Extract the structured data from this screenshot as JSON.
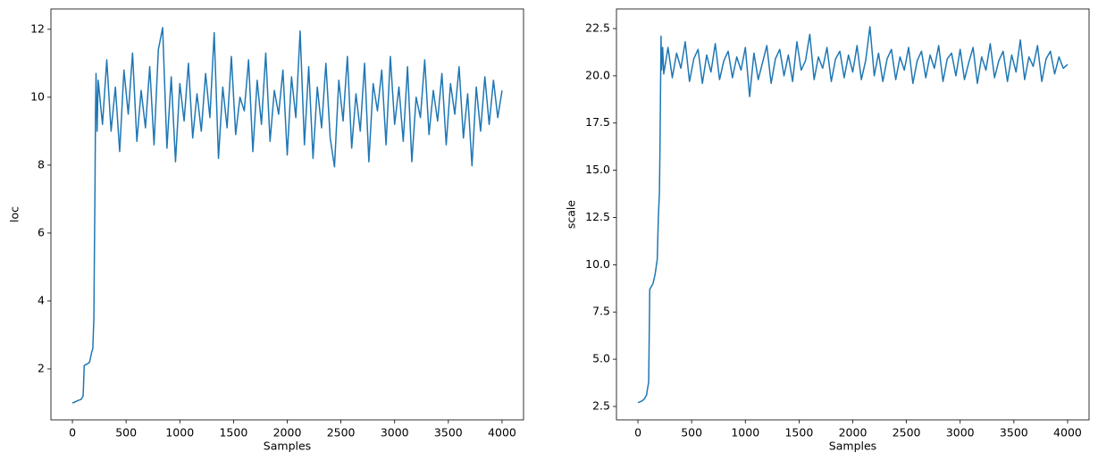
{
  "chart_data": [
    {
      "type": "line",
      "xlabel": "Samples",
      "ylabel": "loc",
      "color": "#1f77b4",
      "xlim": [
        -200,
        4200
      ],
      "ylim": [
        0.5,
        12.6
      ],
      "xticks": [
        0,
        500,
        1000,
        1500,
        2000,
        2500,
        3000,
        3500,
        4000
      ],
      "yticks": [
        2,
        4,
        6,
        8,
        10,
        12
      ],
      "x": [
        0,
        20,
        40,
        60,
        80,
        100,
        110,
        120,
        140,
        160,
        180,
        190,
        200,
        205,
        210,
        215,
        220,
        230,
        240,
        280,
        320,
        360,
        400,
        440,
        480,
        520,
        560,
        600,
        640,
        680,
        720,
        760,
        800,
        840,
        880,
        920,
        960,
        1000,
        1040,
        1080,
        1120,
        1160,
        1200,
        1240,
        1280,
        1320,
        1360,
        1400,
        1440,
        1480,
        1520,
        1560,
        1600,
        1640,
        1680,
        1720,
        1760,
        1800,
        1840,
        1880,
        1920,
        1960,
        2000,
        2040,
        2080,
        2120,
        2160,
        2200,
        2240,
        2280,
        2320,
        2360,
        2400,
        2440,
        2480,
        2520,
        2560,
        2600,
        2640,
        2680,
        2720,
        2760,
        2800,
        2840,
        2880,
        2920,
        2960,
        3000,
        3040,
        3080,
        3120,
        3160,
        3200,
        3240,
        3280,
        3320,
        3360,
        3400,
        3440,
        3480,
        3520,
        3560,
        3600,
        3640,
        3680,
        3720,
        3760,
        3800,
        3840,
        3880,
        3920,
        3960,
        4000
      ],
      "values": [
        1.0,
        1.02,
        1.05,
        1.08,
        1.1,
        1.2,
        2.1,
        2.12,
        2.15,
        2.2,
        2.5,
        2.6,
        3.5,
        5.5,
        7.2,
        9.5,
        10.7,
        9.0,
        10.5,
        9.2,
        11.1,
        9.0,
        10.3,
        8.4,
        10.8,
        9.5,
        11.3,
        8.7,
        10.2,
        9.1,
        10.9,
        8.6,
        11.4,
        12.05,
        8.5,
        10.6,
        8.1,
        10.4,
        9.3,
        11.0,
        8.8,
        10.1,
        9.0,
        10.7,
        9.4,
        11.9,
        8.2,
        10.3,
        9.1,
        11.2,
        8.9,
        10.0,
        9.6,
        11.1,
        8.4,
        10.5,
        9.2,
        11.3,
        8.7,
        10.2,
        9.5,
        10.8,
        8.3,
        10.6,
        9.4,
        11.95,
        8.6,
        10.9,
        8.2,
        10.3,
        9.1,
        11.0,
        8.8,
        7.95,
        10.5,
        9.3,
        11.2,
        8.5,
        10.1,
        9.0,
        11.0,
        8.1,
        10.4,
        9.6,
        10.8,
        8.6,
        11.2,
        9.2,
        10.3,
        8.7,
        10.9,
        8.1,
        10.0,
        9.4,
        11.1,
        8.9,
        10.2,
        9.3,
        10.7,
        8.6,
        10.4,
        9.5,
        10.9,
        8.8,
        10.1,
        7.98,
        10.3,
        9.0,
        10.6,
        9.2,
        10.5,
        9.4,
        10.2
      ]
    },
    {
      "type": "line",
      "xlabel": "Samples",
      "ylabel": "scale",
      "color": "#1f77b4",
      "xlim": [
        -200,
        4200
      ],
      "ylim": [
        1.79,
        23.54
      ],
      "xticks": [
        0,
        500,
        1000,
        1500,
        2000,
        2500,
        3000,
        3500,
        4000
      ],
      "yticks": [
        2.5,
        {
          "value": 5,
          "label": "5.0"
        },
        7.5,
        {
          "value": 10,
          "label": "10.0"
        },
        12.5,
        {
          "value": 15,
          "label": "15.0"
        },
        17.5,
        {
          "value": 20,
          "label": "20.0"
        },
        22.5
      ],
      "x": [
        0,
        20,
        40,
        60,
        80,
        100,
        110,
        120,
        140,
        160,
        180,
        190,
        200,
        205,
        210,
        215,
        220,
        230,
        240,
        280,
        320,
        360,
        400,
        440,
        480,
        520,
        560,
        600,
        640,
        680,
        720,
        760,
        800,
        840,
        880,
        920,
        960,
        1000,
        1040,
        1080,
        1120,
        1160,
        1200,
        1240,
        1280,
        1320,
        1360,
        1400,
        1440,
        1480,
        1520,
        1560,
        1600,
        1640,
        1680,
        1720,
        1760,
        1800,
        1840,
        1880,
        1920,
        1960,
        2000,
        2040,
        2080,
        2120,
        2160,
        2200,
        2240,
        2280,
        2320,
        2360,
        2400,
        2440,
        2480,
        2520,
        2560,
        2600,
        2640,
        2680,
        2720,
        2760,
        2800,
        2840,
        2880,
        2920,
        2960,
        3000,
        3040,
        3080,
        3120,
        3160,
        3200,
        3240,
        3280,
        3320,
        3360,
        3400,
        3440,
        3480,
        3520,
        3560,
        3600,
        3640,
        3680,
        3720,
        3760,
        3800,
        3840,
        3880,
        3920,
        3960,
        4000
      ],
      "values": [
        2.7,
        2.75,
        2.8,
        2.9,
        3.1,
        3.8,
        8.7,
        8.8,
        9.0,
        9.5,
        10.3,
        12.5,
        13.8,
        16,
        19,
        22.1,
        20.3,
        21.5,
        20.1,
        21.5,
        19.9,
        21.2,
        20.4,
        21.8,
        19.7,
        20.9,
        21.4,
        19.6,
        21.1,
        20.2,
        21.7,
        19.8,
        20.8,
        21.3,
        19.9,
        21.0,
        20.3,
        21.5,
        18.9,
        21.2,
        19.8,
        20.7,
        21.6,
        19.6,
        20.9,
        21.4,
        20.0,
        21.1,
        19.7,
        21.8,
        20.3,
        20.8,
        22.2,
        19.8,
        21.0,
        20.4,
        21.5,
        19.7,
        20.9,
        21.3,
        19.9,
        21.1,
        20.2,
        21.6,
        19.8,
        20.8,
        22.6,
        20.0,
        21.2,
        19.7,
        20.9,
        21.4,
        19.8,
        21.0,
        20.3,
        21.5,
        19.6,
        20.8,
        21.3,
        19.9,
        21.1,
        20.4,
        21.6,
        19.7,
        20.9,
        21.2,
        20.0,
        21.4,
        19.8,
        20.7,
        21.5,
        19.6,
        21.0,
        20.3,
        21.7,
        19.9,
        20.8,
        21.3,
        19.7,
        21.1,
        20.2,
        21.9,
        19.8,
        21.0,
        20.5,
        21.6,
        19.7,
        20.9,
        21.3,
        20.1,
        21.0,
        20.4,
        20.6
      ]
    }
  ]
}
